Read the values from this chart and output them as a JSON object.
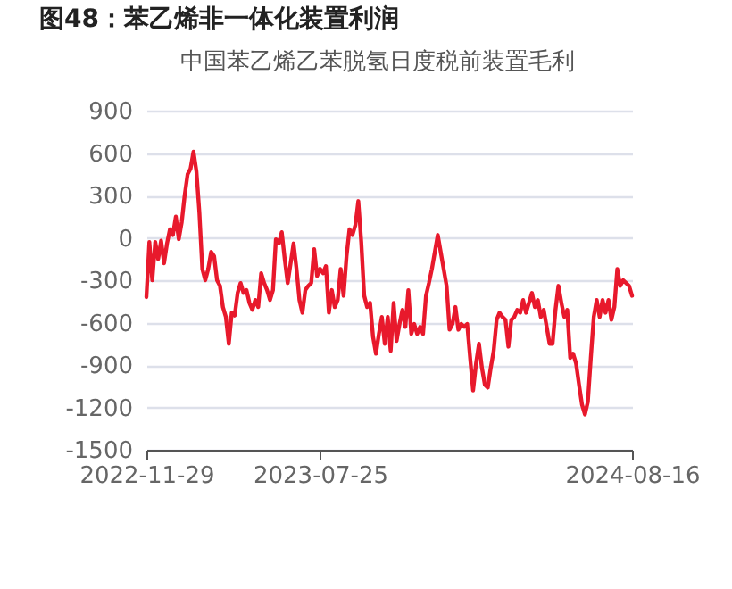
{
  "chart_data": {
    "type": "line",
    "title": "图48：苯乙烯非一体化装置利润",
    "categories": [
      "2022-11-29",
      null,
      null,
      null,
      null,
      null,
      null,
      null,
      null,
      null,
      null,
      null,
      null,
      null,
      null,
      null,
      null,
      null,
      null,
      null,
      null,
      null,
      null,
      null,
      null,
      null,
      null,
      null,
      null,
      null,
      null,
      null,
      null,
      null,
      null,
      null,
      null,
      null,
      null,
      null,
      null,
      null,
      null,
      null,
      null,
      null,
      null,
      null,
      null,
      null,
      null,
      null,
      null,
      null,
      null,
      null,
      null,
      null,
      null,
      "2023-07-25",
      null,
      null,
      null,
      null,
      null,
      null,
      null,
      null,
      null,
      null,
      null,
      null,
      null,
      null,
      null,
      null,
      null,
      null,
      null,
      null,
      null,
      null,
      null,
      null,
      null,
      null,
      null,
      null,
      null,
      null,
      null,
      null,
      null,
      null,
      null,
      null,
      null,
      null,
      null,
      null,
      null,
      null,
      null,
      null,
      null,
      null,
      null,
      null,
      null,
      null,
      null,
      null,
      null,
      null,
      null,
      null,
      null,
      null,
      null,
      null,
      null,
      null,
      null,
      null,
      null,
      null,
      null,
      null,
      null,
      null,
      null,
      null,
      null,
      null,
      null,
      null,
      null,
      null,
      null,
      null,
      null,
      null,
      null,
      null,
      null,
      null,
      null,
      null,
      null,
      null,
      null,
      null,
      null,
      null,
      null,
      null,
      null,
      null,
      null,
      null,
      null,
      null,
      null,
      null,
      null,
      "2024-08-16"
    ],
    "series": [
      {
        "name": "中国苯乙烯乙苯脱氢日度税前装置毛利",
        "color": "#e8192c",
        "values": [
          -420,
          -30,
          -300,
          -30,
          -150,
          -20,
          -180,
          -40,
          60,
          20,
          150,
          -10,
          110,
          300,
          450,
          490,
          610,
          470,
          180,
          -220,
          -300,
          -220,
          -100,
          -130,
          -300,
          -340,
          -490,
          -560,
          -750,
          -530,
          -550,
          -390,
          -320,
          -390,
          -370,
          -460,
          -510,
          -440,
          -490,
          -250,
          -320,
          -370,
          -440,
          -370,
          -10,
          -40,
          40,
          -150,
          -320,
          -180,
          -40,
          -220,
          -440,
          -530,
          -370,
          -340,
          -320,
          -80,
          -270,
          -220,
          -250,
          -200,
          -530,
          -370,
          -490,
          -440,
          -220,
          -410,
          -130,
          60,
          20,
          90,
          260,
          -30,
          -410,
          -490,
          -460,
          -700,
          -820,
          -680,
          -560,
          -750,
          -560,
          -800,
          -460,
          -730,
          -610,
          -510,
          -630,
          -370,
          -680,
          -610,
          -680,
          -630,
          -680,
          -410,
          -320,
          -220,
          -100,
          20,
          -100,
          -220,
          -340,
          -650,
          -610,
          -490,
          -650,
          -610,
          -630,
          -610,
          -850,
          -1080,
          -890,
          -750,
          -920,
          -1040,
          -1060,
          -920,
          -800,
          -580,
          -530,
          -560,
          -580,
          -770,
          -580,
          -560,
          -510,
          -530,
          -440,
          -530,
          -460,
          -390,
          -490,
          -440,
          -560,
          -510,
          -630,
          -750,
          -750,
          -510,
          -340,
          -460,
          -560,
          -510,
          -850,
          -820,
          -890,
          -1040,
          -1180,
          -1250,
          -1160,
          -850,
          -560,
          -440,
          -560,
          -440,
          -530,
          -440,
          -580,
          -490,
          -220,
          -340,
          -300,
          -320,
          -340,
          -410
        ]
      }
    ],
    "ylim": [
      -1500,
      900
    ],
    "yticks": [
      -1500,
      -1200,
      -900,
      -600,
      -300,
      0,
      300,
      600,
      900
    ],
    "grid": "y",
    "legend": "top",
    "marker": "none",
    "line_style": "solid"
  }
}
